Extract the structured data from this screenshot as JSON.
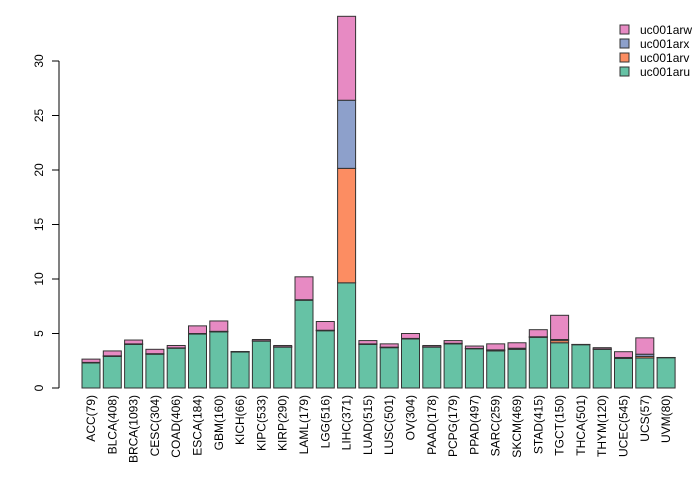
{
  "chart_data": {
    "type": "bar",
    "stacked": true,
    "title": "",
    "xlabel": "",
    "ylabel": "",
    "ylim": [
      0,
      34.5
    ],
    "yticks": [
      0,
      5,
      10,
      15,
      20,
      25,
      30
    ],
    "grid": false,
    "legend_position": "top-right",
    "categories": [
      "ACC(79)",
      "BLCA(408)",
      "BRCA(1093)",
      "CESC(304)",
      "COAD(406)",
      "ESCA(184)",
      "GBM(160)",
      "KICH(66)",
      "KIPC(533)",
      "KIRP(290)",
      "LAML(179)",
      "LGG(516)",
      "LIHC(371)",
      "LUAD(515)",
      "LUSC(501)",
      "OV(304)",
      "PAAD(178)",
      "PCPG(179)",
      "PPAD(497)",
      "SARC(259)",
      "SKCM(469)",
      "STAD(415)",
      "TGCT(150)",
      "THCA(501)",
      "THYM(120)",
      "UCEC(545)",
      "UCS(57)",
      "UVM(80)"
    ],
    "series": [
      {
        "name": "uc001aru",
        "color": "#66c2a5",
        "values": [
          2.3,
          2.9,
          4.0,
          3.1,
          3.65,
          4.95,
          5.15,
          3.3,
          4.3,
          3.75,
          8.05,
          5.25,
          9.65,
          4.0,
          3.7,
          4.5,
          3.75,
          4.05,
          3.6,
          3.4,
          3.55,
          4.65,
          4.15,
          3.97,
          3.55,
          2.72,
          2.75,
          2.78
        ]
      },
      {
        "name": "uc001arv",
        "color": "#fc8d62",
        "values": [
          0.03,
          0.03,
          0.03,
          0.03,
          0.02,
          0.03,
          0.03,
          0.02,
          0.02,
          0.02,
          0.03,
          0.03,
          10.5,
          0.03,
          0.03,
          0.03,
          0.02,
          0.03,
          0.02,
          0.05,
          0.05,
          0.03,
          0.2,
          0.02,
          0.02,
          0.05,
          0.15,
          0.01
        ]
      },
      {
        "name": "uc001arx",
        "color": "#8da0cb",
        "values": [
          0.02,
          0.02,
          0.02,
          0.02,
          0.01,
          0.02,
          0.02,
          0.01,
          0.01,
          0.01,
          0.02,
          0.02,
          6.25,
          0.02,
          0.02,
          0.02,
          0.01,
          0.02,
          0.01,
          0.05,
          0.05,
          0.02,
          0.1,
          0.01,
          0.01,
          0.03,
          0.2,
          0.01
        ]
      },
      {
        "name": "uc001arw",
        "color": "#e78ac3",
        "values": [
          0.3,
          0.45,
          0.35,
          0.4,
          0.22,
          0.7,
          0.95,
          0.02,
          0.12,
          0.12,
          2.1,
          0.8,
          7.7,
          0.3,
          0.3,
          0.45,
          0.12,
          0.25,
          0.22,
          0.55,
          0.5,
          0.65,
          2.22,
          0.0,
          0.12,
          0.53,
          1.5,
          0.0
        ]
      }
    ]
  }
}
